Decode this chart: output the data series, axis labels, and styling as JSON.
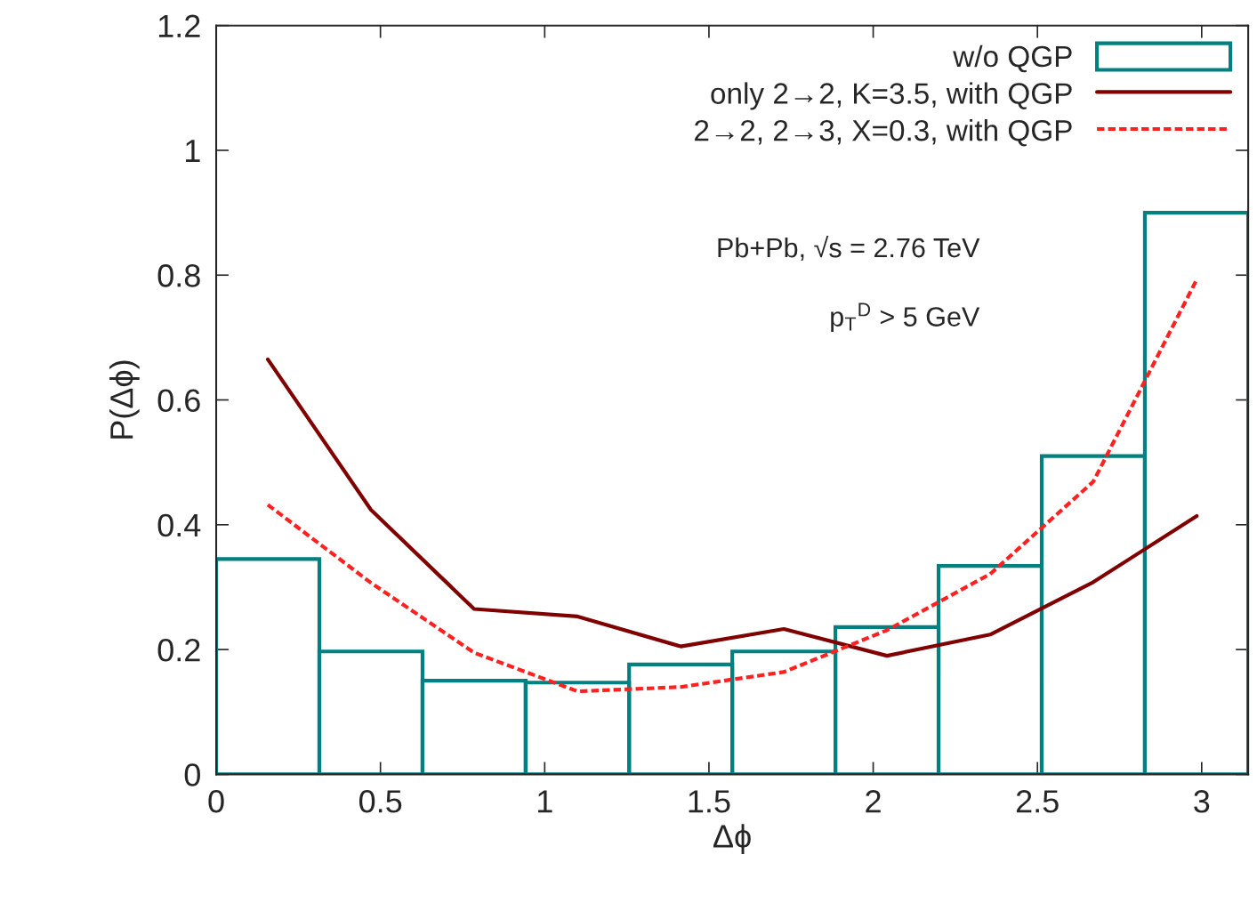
{
  "chart_data": {
    "type": "histogram",
    "xlabel": "Δϕ",
    "ylabel": "P(Δϕ)",
    "xlim": [
      0,
      3.1416
    ],
    "ylim": [
      0,
      1.2
    ],
    "xticks": [
      0,
      0.5,
      1,
      1.5,
      2,
      2.5,
      3
    ],
    "yticks": [
      0,
      0.2,
      0.4,
      0.6,
      0.8,
      1,
      1.2
    ],
    "legend": "top right",
    "grid": false,
    "series": [
      {
        "name": "w/o QGP",
        "color": "#008080",
        "bins": [
          0,
          0.314,
          0.628,
          0.942,
          1.257,
          1.571,
          1.885,
          2.199,
          2.513,
          2.827,
          3.1416
        ],
        "values": [
          0.345,
          0.197,
          0.15,
          0.147,
          0.176,
          0.197,
          0.236,
          0.334,
          0.51,
          0.9
        ]
      },
      {
        "type": "line",
        "name": "only 2→2, K=3.5, with QGP",
        "color": "#800000",
        "line_style": "solid",
        "x": [
          0.157,
          0.471,
          0.785,
          1.1,
          1.414,
          1.728,
          2.042,
          2.356,
          2.67,
          2.985
        ],
        "values": [
          0.665,
          0.424,
          0.265,
          0.253,
          0.205,
          0.233,
          0.19,
          0.224,
          0.308,
          0.414
        ]
      },
      {
        "type": "line",
        "name": "2→2, 2→3, X=0.3, with QGP",
        "color": "#ff2020",
        "line_style": "dotted",
        "x": [
          0.157,
          0.471,
          0.785,
          1.1,
          1.414,
          1.728,
          2.042,
          2.356,
          2.67,
          2.985
        ],
        "values": [
          0.432,
          0.307,
          0.195,
          0.133,
          0.14,
          0.164,
          0.231,
          0.321,
          0.469,
          0.793
        ]
      }
    ],
    "annotations": [
      "Pb+Pb, √s = 2.76 TeV",
      "p$_{T}$$^{D}$ > 5 GeV"
    ]
  }
}
